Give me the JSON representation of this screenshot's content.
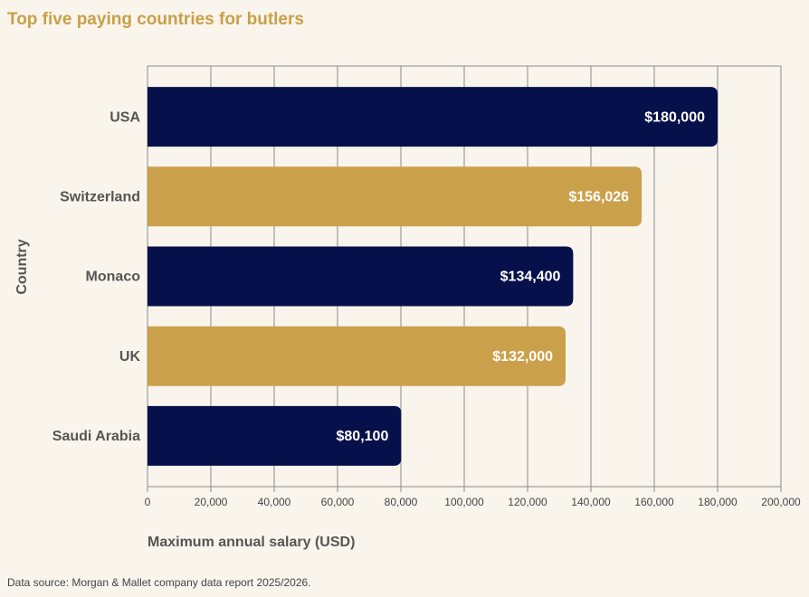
{
  "chart_data": {
    "type": "bar",
    "orientation": "horizontal",
    "title": "Top five paying countries for butlers",
    "x_label": "Maximum annual salary (USD)",
    "y_label": "Country",
    "source": "Data source: Morgan & Mallet company data report 2025/2026.",
    "categories": [
      "USA",
      "Switzerland",
      "Monaco",
      "UK",
      "Saudi Arabia"
    ],
    "values": [
      180000,
      156026,
      134400,
      132000,
      80100
    ],
    "value_labels": [
      "$180,000",
      "$156,026",
      "$134,400",
      "$132,000",
      "$80,100"
    ],
    "colors": [
      "#06104a",
      "#cba04b",
      "#06104a",
      "#cba04b",
      "#06104a"
    ],
    "xlim": [
      0,
      200000
    ],
    "xticks": [
      0,
      {
        "value": 20000,
        "label": "20,000"
      },
      {
        "value": 40000,
        "label": "40,000"
      },
      {
        "value": 60000,
        "label": "60,000"
      },
      {
        "value": 80000,
        "label": "80,000"
      },
      {
        "value": 100000,
        "label": "100,000"
      },
      {
        "value": 120000,
        "label": "120,000"
      },
      {
        "value": 140000,
        "label": "140,000"
      },
      {
        "value": 160000,
        "label": "160,000"
      },
      {
        "value": 180000,
        "label": "180,000"
      },
      {
        "value": 200000,
        "label": "200,000"
      }
    ],
    "grid": true
  }
}
